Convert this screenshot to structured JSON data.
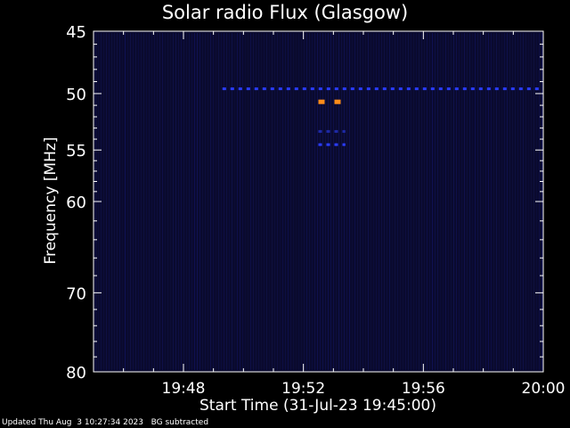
{
  "chart_data": {
    "type": "heatmap",
    "title": "Solar radio Flux (Glasgow)",
    "xlabel": "Start Time (31-Jul-23 19:45:00)",
    "ylabel": "Frequency [MHz]",
    "xlim_minutes": [
      0,
      15
    ],
    "x_tick_minutes": [
      3,
      7,
      11,
      15
    ],
    "x_tick_labels": [
      "19:48",
      "19:52",
      "19:56",
      "20:00"
    ],
    "y_log_scale": true,
    "ylim": [
      45,
      80
    ],
    "y_ticks": [
      45,
      50,
      55,
      60,
      70,
      80
    ],
    "y_tick_labels": [
      "45",
      "50",
      "55",
      "60",
      "70",
      "80"
    ],
    "background_color": "#0a0a2e",
    "features": [
      {
        "freq_mhz": 49.6,
        "t_start_min": 4.3,
        "t_end_min": 15,
        "color": "#2a3cff",
        "style": "dashed"
      },
      {
        "freq_mhz": 50.7,
        "t_start_min": 7.5,
        "t_end_min": 8.4,
        "color": "#ff8c1a",
        "style": "dashed"
      },
      {
        "freq_mhz": 53.3,
        "t_start_min": 7.5,
        "t_end_min": 8.4,
        "color": "#1e2aa8",
        "style": "dashed"
      },
      {
        "freq_mhz": 54.5,
        "t_start_min": 7.5,
        "t_end_min": 8.4,
        "color": "#2a3cff",
        "style": "dashed"
      }
    ]
  },
  "footer": {
    "updated": "Updated Thu Aug  3 10:27:34 2023",
    "note": "BG subtracted"
  }
}
